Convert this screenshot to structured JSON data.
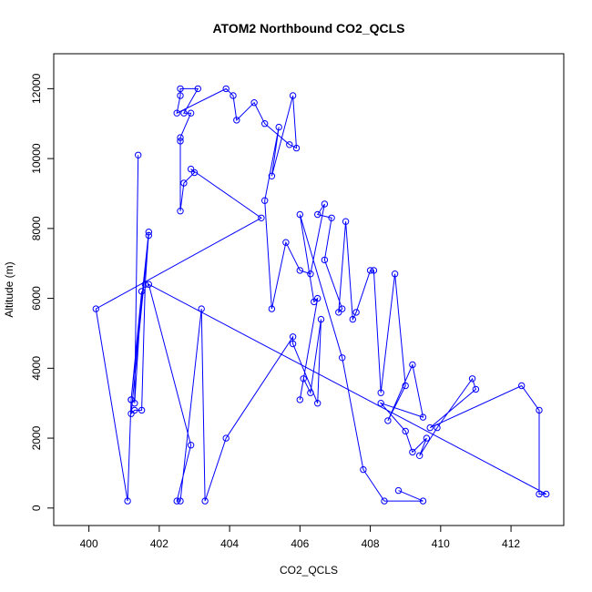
{
  "chart_data": {
    "type": "scatter",
    "title": "ATOM2 Northbound CO2_QCLS",
    "xlabel": "CO2_QCLS",
    "ylabel": "Altitude (m)",
    "xlim": [
      399,
      413.5
    ],
    "ylim": [
      -500,
      13000
    ],
    "xticks": [
      400,
      402,
      404,
      406,
      408,
      410,
      412
    ],
    "yticks": [
      0,
      2000,
      4000,
      6000,
      8000,
      10000,
      12000
    ],
    "grid": false,
    "color": "#0000ff",
    "series": [
      {
        "x": [
          401.4,
          401.3,
          401.5,
          401.2,
          401.7,
          401.2,
          401.3,
          401.5,
          401.6,
          401.7,
          401.2,
          401.1,
          400.2,
          404.9,
          402.9,
          403.0,
          402.7,
          402.6,
          402.6,
          402.6,
          402.9,
          402.7,
          403.1,
          402.6,
          402.6,
          402.5,
          403.9,
          404.1,
          404.2,
          404.7,
          405.0,
          405.7,
          405.9,
          405.8,
          405.2,
          405.4,
          405.0,
          405.2,
          405.6,
          406.0,
          406.3,
          406.7,
          406.5,
          406.9,
          406.7,
          407.2,
          407.1,
          407.3,
          407.5,
          407.6,
          408.0,
          408.1,
          408.3,
          408.7,
          409.0,
          408.5,
          409.2,
          409.5,
          408.3,
          409.0,
          409.2,
          409.6,
          409.4,
          409.9,
          410.9,
          411.0,
          409.7,
          412.3,
          412.8,
          412.8,
          413.0,
          401.7,
          402.9,
          402.5,
          402.6,
          403.2,
          403.3,
          403.9,
          405.8,
          405.8,
          406.5,
          406.6,
          406.3,
          406.1,
          406.0,
          406.5,
          406.4,
          406.0,
          407.2,
          407.8,
          408.4,
          409.5,
          408.8
        ],
        "y": [
          10100,
          3000,
          6200,
          3100,
          7800,
          2700,
          2800,
          2800,
          6400,
          7900,
          3100,
          200,
          5700,
          8300,
          9700,
          9600,
          9300,
          8500,
          10500,
          10600,
          11300,
          11300,
          12000,
          12000,
          11800,
          11300,
          12000,
          11800,
          11100,
          11600,
          11000,
          10400,
          10300,
          11800,
          9500,
          10900,
          8800,
          5700,
          7600,
          6800,
          6700,
          8700,
          8400,
          8300,
          7100,
          5700,
          5600,
          8200,
          5400,
          5600,
          6800,
          6800,
          3300,
          6700,
          3500,
          2500,
          4100,
          2600,
          3000,
          2200,
          1600,
          2000,
          1500,
          2300,
          3700,
          3400,
          2300,
          3500,
          2800,
          400,
          400,
          6400,
          1800,
          200,
          200,
          5700,
          200,
          2000,
          4900,
          4700,
          3000,
          5400,
          3300,
          3700,
          3100,
          6000,
          5900,
          8400,
          4300,
          1100,
          200,
          200,
          500
        ]
      }
    ]
  }
}
